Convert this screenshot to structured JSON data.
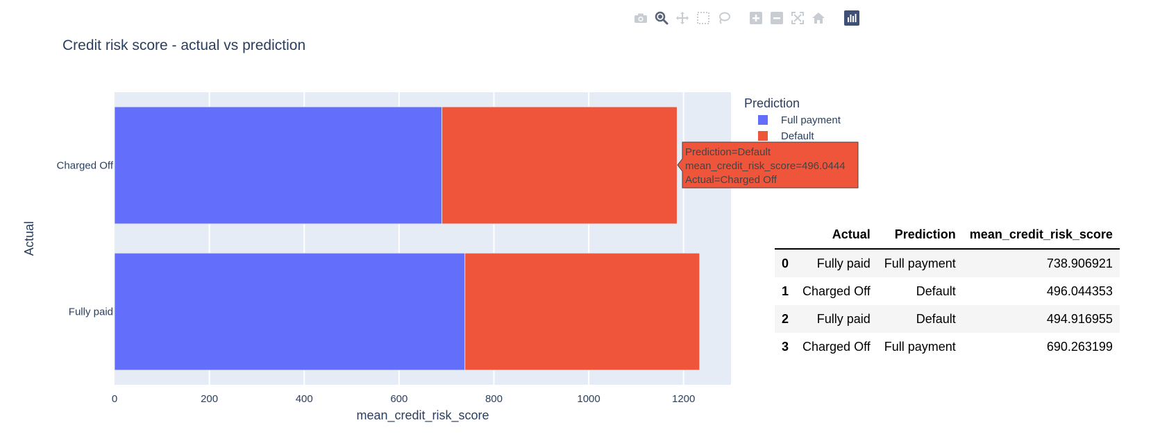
{
  "modebar": {
    "buttons": [
      {
        "name": "camera-icon",
        "active": false
      },
      {
        "name": "zoom-icon",
        "active": true
      },
      {
        "name": "pan-icon",
        "active": false
      },
      {
        "name": "box-select-icon",
        "active": false
      },
      {
        "name": "lasso-select-icon",
        "active": false
      },
      {
        "name": "zoom-in-icon",
        "active": false
      },
      {
        "name": "zoom-out-icon",
        "active": false
      },
      {
        "name": "autoscale-icon",
        "active": false
      },
      {
        "name": "reset-axes-icon",
        "active": false
      },
      {
        "name": "plotly-logo-icon",
        "active": false
      }
    ]
  },
  "chart_data": {
    "type": "bar",
    "orientation": "horizontal",
    "barmode": "stack",
    "title": "Credit risk score - actual vs prediction",
    "xlabel": "mean_credit_risk_score",
    "ylabel": "Actual",
    "categories": [
      "Charged Off",
      "Fully paid"
    ],
    "series": [
      {
        "name": "Full payment",
        "color": "#636efa",
        "values": [
          690.263199,
          738.906921
        ]
      },
      {
        "name": "Default",
        "color": "#ef553b",
        "values": [
          496.044353,
          494.916955
        ]
      }
    ],
    "xlim": [
      0,
      1300
    ],
    "xticks": [
      "0",
      "200",
      "400",
      "600",
      "800",
      "1000",
      "1200"
    ],
    "grid": true,
    "legend": {
      "title": "Prediction",
      "position": "top-right"
    },
    "hover": {
      "lines": [
        "Prediction=Default",
        "mean_credit_risk_score=496.0444",
        "Actual=Charged Off"
      ]
    }
  },
  "table": {
    "columns": [
      "",
      "Actual",
      "Prediction",
      "mean_credit_risk_score"
    ],
    "rows": [
      [
        "0",
        "Fully paid",
        "Full payment",
        "738.906921"
      ],
      [
        "1",
        "Charged Off",
        "Default",
        "496.044353"
      ],
      [
        "2",
        "Fully paid",
        "Default",
        "494.916955"
      ],
      [
        "3",
        "Charged Off",
        "Full payment",
        "690.263199"
      ]
    ]
  }
}
